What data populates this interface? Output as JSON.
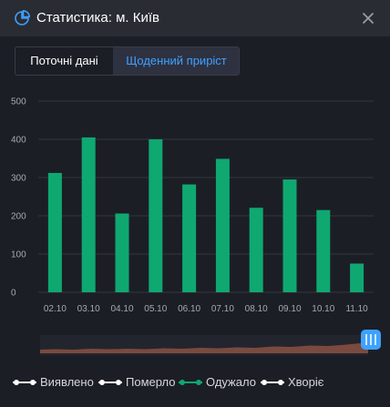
{
  "header": {
    "title": "Статистика: м. Київ"
  },
  "tabs": [
    {
      "label": "Поточні дані",
      "active": false
    },
    {
      "label": "Щоденний приріст",
      "active": true
    }
  ],
  "colors": {
    "bar": "#0fa871",
    "accent": "#3ea2ff",
    "background": "#1c1e26"
  },
  "chart_data": {
    "type": "bar",
    "categories": [
      "02.10",
      "03.10",
      "04.10",
      "05.10",
      "06.10",
      "07.10",
      "08.10",
      "09.10",
      "10.10",
      "11.10"
    ],
    "series": [
      {
        "name": "Одужало",
        "values": [
          312,
          405,
          206,
          400,
          282,
          349,
          221,
          295,
          215,
          75
        ]
      }
    ],
    "y_ticks": [
      "0",
      "100",
      "200",
      "300",
      "400",
      "500"
    ],
    "ylim": [
      0,
      500
    ],
    "grid": true,
    "legend_position": "bottom",
    "legend": [
      {
        "label": "Виявлено",
        "active": false
      },
      {
        "label": "Померло",
        "active": false
      },
      {
        "label": "Одужало",
        "active": true
      },
      {
        "label": "Хворіє",
        "active": false
      }
    ]
  }
}
